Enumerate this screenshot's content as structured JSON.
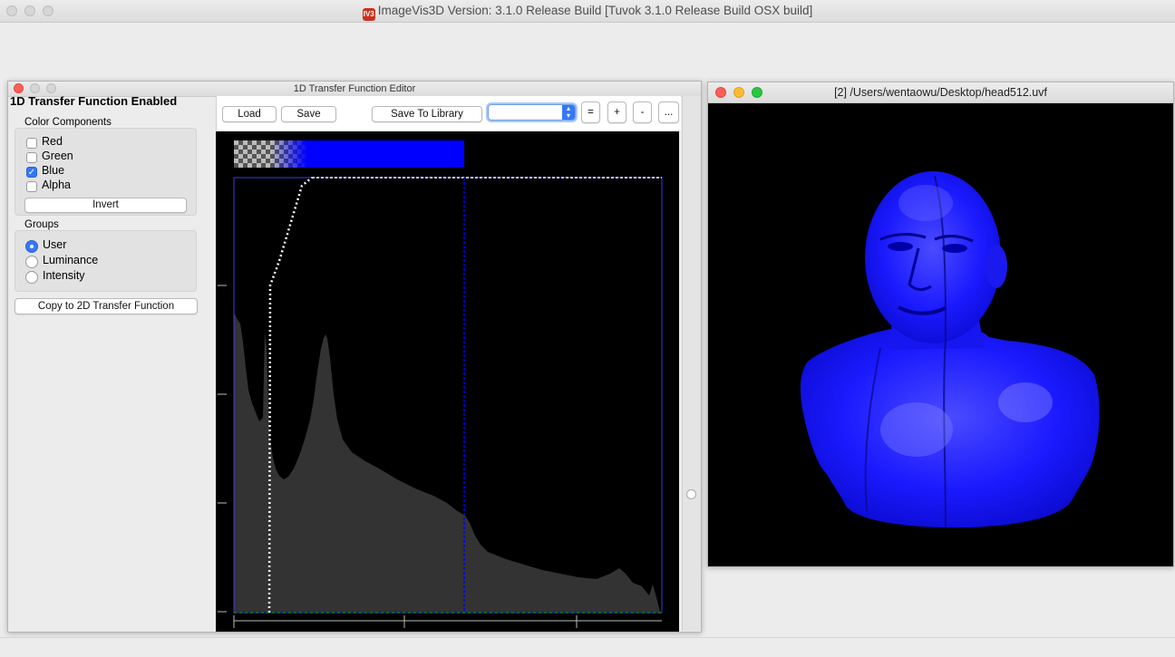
{
  "app": {
    "title": "ImageVis3D Version: 3.1.0 Release Build [Tuvok 3.1.0 Release Build OSX build]",
    "icon_text": "IV3"
  },
  "tf_editor": {
    "window_title": "1D Transfer Function Editor",
    "enabled_label": "1D Transfer Function Enabled",
    "color_components": {
      "title": "Color Components",
      "items": [
        {
          "label": "Red",
          "checked": false
        },
        {
          "label": "Green",
          "checked": false
        },
        {
          "label": "Blue",
          "checked": true
        },
        {
          "label": "Alpha",
          "checked": false
        }
      ],
      "invert_label": "Invert"
    },
    "groups": {
      "title": "Groups",
      "items": [
        {
          "label": "User",
          "selected": true
        },
        {
          "label": "Luminance",
          "selected": false
        },
        {
          "label": "Intensity",
          "selected": false
        }
      ]
    },
    "copy_button": "Copy to 2D Transfer Function",
    "toolbar": {
      "load": "Load",
      "save": "Save",
      "save_to_library": "Save To Library",
      "library_select_value": "",
      "equal": "=",
      "plus": "+",
      "minus": "-",
      "more": "..."
    },
    "colors": {
      "histogram_fill": "#333333",
      "tf_blue": "#0000ff",
      "alpha_curve": "#ffffff",
      "plot_background": "#000000"
    }
  },
  "render_window": {
    "title": "[2] /Users/wentaowu/Desktop/head512.uvf",
    "model_color": "#1a1aff",
    "background": "#000000"
  }
}
